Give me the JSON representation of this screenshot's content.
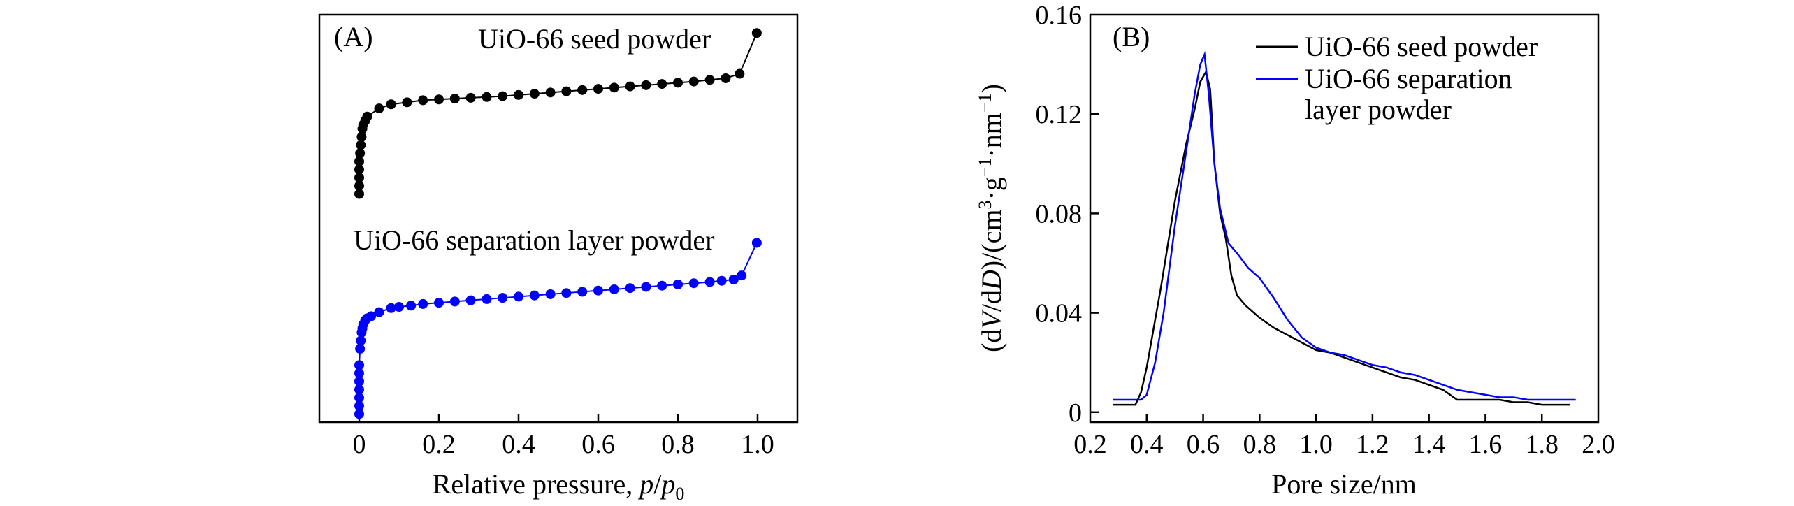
{
  "chart_data": [
    {
      "id": "A",
      "type": "scatter",
      "panel_label": "(A)",
      "xlabel_main": "Relative pressure, ",
      "xlabel_var": "p",
      "xlabel_sep": "/",
      "xlabel_var2": "p",
      "xlabel_sub": "0",
      "ylabel": "",
      "xlim": [
        -0.1,
        1.1
      ],
      "ylim": [
        0,
        100
      ],
      "yticks_visible": false,
      "xticks": [
        0,
        0.2,
        0.4,
        0.6,
        0.8,
        1.0
      ],
      "xtick_labels": [
        "0",
        "0.2",
        "0.4",
        "0.6",
        "0.8",
        "1.0"
      ],
      "annotations": [
        {
          "text": "UiO-66 seed powder",
          "series": "seed",
          "anchor": "top-right"
        },
        {
          "text": "UiO-66 separation layer powder",
          "series": "sep",
          "anchor": "upper-middle"
        }
      ],
      "series": [
        {
          "name": "UiO-66 seed powder",
          "key": "seed",
          "color": "#000000",
          "x": [
            0.0,
            0.0,
            0.0,
            0.0,
            0.0,
            0.002,
            0.004,
            0.006,
            0.008,
            0.01,
            0.015,
            0.02,
            0.05,
            0.08,
            0.12,
            0.16,
            0.2,
            0.24,
            0.28,
            0.32,
            0.36,
            0.4,
            0.44,
            0.48,
            0.52,
            0.56,
            0.6,
            0.64,
            0.68,
            0.72,
            0.76,
            0.8,
            0.84,
            0.88,
            0.92,
            0.955,
            0.998
          ],
          "y": [
            56,
            58,
            60,
            62,
            64,
            66,
            68,
            70,
            72,
            73,
            74,
            75,
            77,
            78,
            78.5,
            79,
            79.2,
            79.4,
            79.6,
            79.8,
            80.0,
            80.3,
            80.6,
            80.9,
            81.2,
            81.5,
            81.8,
            82.1,
            82.4,
            82.7,
            83.0,
            83.3,
            83.6,
            84.0,
            84.4,
            85.5,
            95.5
          ]
        },
        {
          "name": "UiO-66 separation layer powder",
          "key": "sep",
          "color": "#0000ff",
          "x": [
            0.0,
            0.0,
            0.0,
            0.0,
            0.0,
            0.0,
            0.0,
            0.002,
            0.004,
            0.006,
            0.008,
            0.01,
            0.015,
            0.02,
            0.03,
            0.05,
            0.08,
            0.1,
            0.13,
            0.16,
            0.2,
            0.24,
            0.28,
            0.32,
            0.36,
            0.4,
            0.44,
            0.48,
            0.52,
            0.56,
            0.6,
            0.64,
            0.68,
            0.72,
            0.76,
            0.8,
            0.84,
            0.88,
            0.91,
            0.94,
            0.96,
            0.998
          ],
          "y": [
            2,
            4,
            6,
            8,
            10,
            12,
            14,
            18,
            20,
            22,
            23,
            24,
            25,
            25.5,
            26,
            27,
            28,
            28.3,
            28.6,
            29,
            29.3,
            29.6,
            29.9,
            30.2,
            30.5,
            30.8,
            31.1,
            31.4,
            31.7,
            32.0,
            32.3,
            32.6,
            32.9,
            33.2,
            33.5,
            33.8,
            34.1,
            34.4,
            34.7,
            35.0,
            36,
            44
          ]
        }
      ]
    },
    {
      "id": "B",
      "type": "line",
      "panel_label": "(B)",
      "xlabel": "Pore size/nm",
      "ylabel_parts": [
        "(d",
        "V",
        "/d",
        "D",
        ")/(cm",
        "3",
        "·g",
        "−1",
        "·nm",
        "−1",
        ")"
      ],
      "xlim": [
        0.2,
        2.0
      ],
      "ylim": [
        -0.004,
        0.16
      ],
      "xticks": [
        0.2,
        0.4,
        0.6,
        0.8,
        1.0,
        1.2,
        1.4,
        1.6,
        1.8,
        2.0
      ],
      "xtick_labels": [
        "0.2",
        "0.4",
        "0.6",
        "0.8",
        "1.0",
        "1.2",
        "1.4",
        "1.6",
        "1.8",
        "2.0"
      ],
      "yticks": [
        0,
        0.04,
        0.08,
        0.12,
        0.16
      ],
      "ytick_labels": [
        "0",
        "0.04",
        "0.08",
        "0.12",
        "0.16"
      ],
      "legend": {
        "position": "top-right",
        "entries": [
          {
            "lines": [
              "UiO-66 seed powder"
            ],
            "color": "#000000"
          },
          {
            "lines": [
              "UiO-66 separation",
              "layer powder"
            ],
            "color": "#0000ff"
          }
        ]
      },
      "series": [
        {
          "name": "UiO-66 seed powder",
          "color": "#000000",
          "x": [
            0.28,
            0.36,
            0.38,
            0.4,
            0.45,
            0.5,
            0.54,
            0.57,
            0.59,
            0.61,
            0.625,
            0.64,
            0.66,
            0.68,
            0.7,
            0.72,
            0.75,
            0.8,
            0.85,
            0.9,
            0.95,
            1.0,
            1.05,
            1.1,
            1.15,
            1.2,
            1.25,
            1.3,
            1.35,
            1.4,
            1.45,
            1.5,
            1.55,
            1.6,
            1.65,
            1.7,
            1.75,
            1.8,
            1.85,
            1.9
          ],
          "y": [
            0.003,
            0.003,
            0.008,
            0.018,
            0.05,
            0.085,
            0.108,
            0.122,
            0.133,
            0.137,
            0.13,
            0.1,
            0.08,
            0.07,
            0.055,
            0.047,
            0.043,
            0.038,
            0.034,
            0.031,
            0.028,
            0.025,
            0.024,
            0.022,
            0.02,
            0.018,
            0.016,
            0.014,
            0.013,
            0.011,
            0.009,
            0.005,
            0.005,
            0.005,
            0.005,
            0.004,
            0.004,
            0.003,
            0.003,
            0.003
          ]
        },
        {
          "name": "UiO-66 separation layer powder",
          "color": "#0000ff",
          "x": [
            0.28,
            0.38,
            0.4,
            0.43,
            0.46,
            0.5,
            0.54,
            0.57,
            0.59,
            0.605,
            0.62,
            0.64,
            0.66,
            0.69,
            0.72,
            0.76,
            0.8,
            0.85,
            0.9,
            0.95,
            1.0,
            1.05,
            1.1,
            1.15,
            1.2,
            1.25,
            1.3,
            1.35,
            1.4,
            1.45,
            1.5,
            1.55,
            1.6,
            1.65,
            1.7,
            1.75,
            1.8,
            1.85,
            1.92
          ],
          "y": [
            0.005,
            0.005,
            0.007,
            0.02,
            0.04,
            0.075,
            0.105,
            0.128,
            0.14,
            0.144,
            0.128,
            0.1,
            0.082,
            0.068,
            0.064,
            0.058,
            0.054,
            0.046,
            0.037,
            0.03,
            0.026,
            0.024,
            0.023,
            0.021,
            0.019,
            0.018,
            0.016,
            0.015,
            0.013,
            0.011,
            0.009,
            0.008,
            0.007,
            0.006,
            0.006,
            0.005,
            0.005,
            0.005,
            0.005
          ]
        }
      ]
    }
  ]
}
